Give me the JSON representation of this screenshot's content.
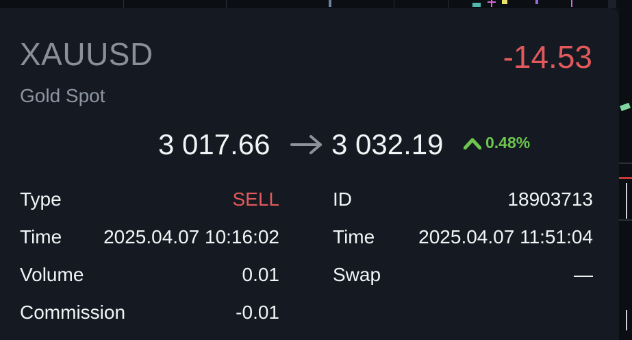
{
  "position": {
    "symbol": "XAUUSD",
    "description": "Gold Spot",
    "profit": "-14.53",
    "open_price": "3 017.66",
    "close_price": "3 032.19",
    "change_percent": "0.48%"
  },
  "details_left": [
    {
      "label": "Type",
      "value": "SELL"
    },
    {
      "label": "Time",
      "value": "2025.04.07 10:16:02"
    },
    {
      "label": "Volume",
      "value": "0.01"
    },
    {
      "label": "Commission",
      "value": "-0.01"
    }
  ],
  "details_right": [
    {
      "label": "ID",
      "value": "18903713"
    },
    {
      "label": "Time",
      "value": "2025.04.07 11:51:04"
    },
    {
      "label": "Swap",
      "value": "—"
    }
  ],
  "colors": {
    "loss": "#e2595c",
    "gain": "#6ec54f",
    "background": "#151a22",
    "text": "#f2f4f6",
    "muted": "#8a9099"
  },
  "icons": {
    "price_arrow": "arrow-right-icon",
    "direction": "triangle-up-icon"
  }
}
